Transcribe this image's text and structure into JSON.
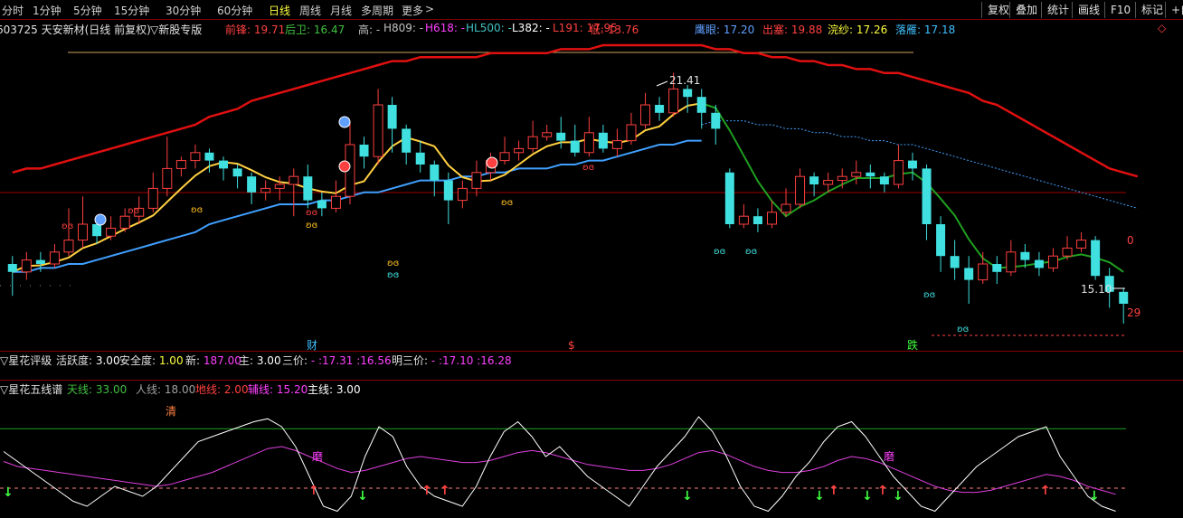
{
  "periods": [
    "分时",
    "1分钟",
    "5分钟",
    "15分钟",
    "30分钟",
    "60分钟",
    "日线",
    "周线",
    "月线",
    "多周期",
    "更多"
  ],
  "active_period": "日线",
  "more_arrow": ">",
  "right_buttons": [
    "复权",
    "叠加",
    "统计",
    "画线",
    "F10",
    "标记",
    "+自"
  ],
  "stock": {
    "header": "603725 天安新材(日线 前复权)",
    "custom_view": "▽新股专版"
  },
  "main_params": [
    {
      "label": "前锋:",
      "value": "19.71",
      "color": "#ff4040"
    },
    {
      "label": "后卫:",
      "value": "16.47",
      "color": "#40c040"
    },
    {
      "label": "高:",
      "value": "-",
      "color": "#c0c0c0"
    },
    {
      "label": "H809:",
      "value": "-",
      "color": "#c0c0c0"
    },
    {
      "label": "H618:",
      "value": "-",
      "color": "#ff40ff"
    },
    {
      "label": "HL500:",
      "value": "-",
      "color": "#40c0c0"
    },
    {
      "label": "L382:",
      "value": "-",
      "color": "#ffffff"
    },
    {
      "label": "L191:",
      "value": "17.95",
      "color": "#ff4040"
    },
    {
      "label": "低:",
      "value": "13.76",
      "color": "#ff4040"
    },
    {
      "label": "鹰眼:",
      "value": "17.20",
      "color": "#60a0ff"
    },
    {
      "label": "出塞:",
      "value": "19.88",
      "color": "#ff4040"
    },
    {
      "label": "浣纱:",
      "value": "17.26",
      "color": "#ffff40"
    },
    {
      "label": "落雁:",
      "value": "17.18",
      "color": "#40c0ff"
    }
  ],
  "right_marker": "◇",
  "annotations": {
    "high": "21.41",
    "low": "15.10",
    "zero": "0",
    "num": "29",
    "cai": "财",
    "s": "$",
    "die": "跌",
    "qing": "清",
    "mo1": "磨",
    "mo2": "磨"
  },
  "rating_panel": {
    "title": "▽星花评级",
    "items": [
      {
        "label": "活跃度:",
        "value": "3.00",
        "color": "#ffffff"
      },
      {
        "label": "安全度:",
        "value": "1.00",
        "color": "#ffff40"
      },
      {
        "label": "新:",
        "value": "187.00",
        "color": "#ff40ff"
      },
      {
        "label": "主:",
        "value": "3.00",
        "color": "#ffffff"
      },
      {
        "label": "三价:",
        "value": "- :17.31 :16.56",
        "color": "#ff40ff"
      },
      {
        "label": "明三价:",
        "value": "- :17.10 :16.28",
        "color": "#ff40ff"
      }
    ]
  },
  "lines_panel": {
    "title": "▽星花五线谱",
    "items": [
      {
        "label": "天线:",
        "value": "33.00",
        "color": "#40c040"
      },
      {
        "label": "人线:",
        "value": "18.00",
        "color": "#a0a0a0"
      },
      {
        "label": "地线:",
        "value": "2.00",
        "color": "#ff4040"
      },
      {
        "label": "辅线:",
        "value": "15.20",
        "color": "#ff40ff"
      },
      {
        "label": "主线:",
        "value": "3.00",
        "color": "#ffffff"
      }
    ]
  },
  "chart_data": {
    "type": "candlestick",
    "candles": [
      [
        16.6,
        16.4,
        16.8,
        15.8
      ],
      [
        16.4,
        16.7,
        16.9,
        16.2
      ],
      [
        16.7,
        16.6,
        16.9,
        16.4
      ],
      [
        16.6,
        16.9,
        17.1,
        16.5
      ],
      [
        16.9,
        17.2,
        18.0,
        16.8
      ],
      [
        17.2,
        17.6,
        18.3,
        17.0
      ],
      [
        17.6,
        17.3,
        17.8,
        17.1
      ],
      [
        17.3,
        17.5,
        17.8,
        17.2
      ],
      [
        17.5,
        17.8,
        18.0,
        17.4
      ],
      [
        17.8,
        18.0,
        18.3,
        17.6
      ],
      [
        18.0,
        18.5,
        18.9,
        17.9
      ],
      [
        18.5,
        19.0,
        19.8,
        18.3
      ],
      [
        19.0,
        19.2,
        19.3,
        18.8
      ],
      [
        19.2,
        19.4,
        19.6,
        19.0
      ],
      [
        19.4,
        19.2,
        19.5,
        18.9
      ],
      [
        19.2,
        19.0,
        19.3,
        18.7
      ],
      [
        19.0,
        18.8,
        19.1,
        18.5
      ],
      [
        18.8,
        18.4,
        18.9,
        18.1
      ],
      [
        18.4,
        18.5,
        18.7,
        18.2
      ],
      [
        18.5,
        18.6,
        18.8,
        18.2
      ],
      [
        18.6,
        18.8,
        19.0,
        17.8
      ],
      [
        18.8,
        18.2,
        19.1,
        18.0
      ],
      [
        18.2,
        18.0,
        18.4,
        17.8
      ],
      [
        18.0,
        18.3,
        18.7,
        17.9
      ],
      [
        18.3,
        19.6,
        20.2,
        18.1
      ],
      [
        19.6,
        19.3,
        19.8,
        19.0
      ],
      [
        19.3,
        20.6,
        21.0,
        19.1
      ],
      [
        20.6,
        20.0,
        20.8,
        19.4
      ],
      [
        20.0,
        19.4,
        20.1,
        19.1
      ],
      [
        19.4,
        19.1,
        19.7,
        18.9
      ],
      [
        19.1,
        18.7,
        19.2,
        18.3
      ],
      [
        18.7,
        18.2,
        18.9,
        17.6
      ],
      [
        18.2,
        18.5,
        18.7,
        18.0
      ],
      [
        18.5,
        18.9,
        19.2,
        18.3
      ],
      [
        18.9,
        19.2,
        19.4,
        18.7
      ],
      [
        19.2,
        19.4,
        19.8,
        19.1
      ],
      [
        19.4,
        19.5,
        19.7,
        19.2
      ],
      [
        19.5,
        19.8,
        20.2,
        19.4
      ],
      [
        19.8,
        19.9,
        20.1,
        19.7
      ],
      [
        19.9,
        19.7,
        20.3,
        19.5
      ],
      [
        19.7,
        19.4,
        20.1,
        19.3
      ],
      [
        19.4,
        19.9,
        20.3,
        19.3
      ],
      [
        19.9,
        19.5,
        20.1,
        19.4
      ],
      [
        19.5,
        19.7,
        20.0,
        19.3
      ],
      [
        19.7,
        20.1,
        20.4,
        19.6
      ],
      [
        20.1,
        20.6,
        20.9,
        20.0
      ],
      [
        20.6,
        20.4,
        20.8,
        20.2
      ],
      [
        20.4,
        21.0,
        21.41,
        20.3
      ],
      [
        21.0,
        20.8,
        21.1,
        20.4
      ],
      [
        20.8,
        20.4,
        21.0,
        20.0
      ],
      [
        20.4,
        20.0,
        20.6,
        19.6
      ],
      [
        18.9,
        17.6,
        19.0,
        17.5
      ],
      [
        17.6,
        17.8,
        18.1,
        17.5
      ],
      [
        17.8,
        17.6,
        18.0,
        17.4
      ],
      [
        17.6,
        17.9,
        18.2,
        17.5
      ],
      [
        17.9,
        18.1,
        18.5,
        17.8
      ],
      [
        18.1,
        18.8,
        19.0,
        18.0
      ],
      [
        18.8,
        18.6,
        18.9,
        18.3
      ],
      [
        18.6,
        18.7,
        18.9,
        18.4
      ],
      [
        18.7,
        18.8,
        19.0,
        18.5
      ],
      [
        18.8,
        18.9,
        19.2,
        18.6
      ],
      [
        18.9,
        18.8,
        19.1,
        18.5
      ],
      [
        18.8,
        18.6,
        18.9,
        18.4
      ],
      [
        18.6,
        19.2,
        19.6,
        18.5
      ],
      [
        19.2,
        19.0,
        19.4,
        18.7
      ],
      [
        19.0,
        17.6,
        19.1,
        17.2
      ],
      [
        17.6,
        16.8,
        17.8,
        16.4
      ],
      [
        16.8,
        16.5,
        17.2,
        16.2
      ],
      [
        16.5,
        16.2,
        16.8,
        15.6
      ],
      [
        16.2,
        16.6,
        16.9,
        16.1
      ],
      [
        16.6,
        16.4,
        16.8,
        16.1
      ],
      [
        16.4,
        16.9,
        17.2,
        16.3
      ],
      [
        16.9,
        16.7,
        17.1,
        16.5
      ],
      [
        16.7,
        16.5,
        16.9,
        16.3
      ],
      [
        16.5,
        16.8,
        17.0,
        16.4
      ],
      [
        16.8,
        17.0,
        17.3,
        16.7
      ],
      [
        17.0,
        17.2,
        17.4,
        16.9
      ],
      [
        17.2,
        16.3,
        17.3,
        16.2
      ],
      [
        16.3,
        15.9,
        16.5,
        15.5
      ],
      [
        15.9,
        15.6,
        16.0,
        15.1
      ]
    ],
    "ylim": [
      14.6,
      22.1
    ],
    "ma_red": [
      18.9,
      19.0,
      19.0,
      19.1,
      19.2,
      19.3,
      19.4,
      19.5,
      19.6,
      19.7,
      19.8,
      19.9,
      20.0,
      20.1,
      20.3,
      20.4,
      20.5,
      20.7,
      20.8,
      20.9,
      21.0,
      21.1,
      21.2,
      21.3,
      21.4,
      21.5,
      21.6,
      21.7,
      21.7,
      21.8,
      21.8,
      21.8,
      21.8,
      21.8,
      21.9,
      21.9,
      21.9,
      21.9,
      21.9,
      22.0,
      22.0,
      22.0,
      22.1,
      22.1,
      22.1,
      22.1,
      22.1,
      22.1,
      22.1,
      22.1,
      22.0,
      22.0,
      21.9,
      21.9,
      21.8,
      21.8,
      21.7,
      21.7,
      21.6,
      21.6,
      21.5,
      21.5,
      21.4,
      21.4,
      21.3,
      21.2,
      21.1,
      21.0,
      20.9,
      20.7,
      20.6,
      20.4,
      20.2,
      20.0,
      19.8,
      19.6,
      19.4,
      19.2,
      19.0,
      18.9,
      18.8
    ],
    "ma_blue": [
      16.4,
      16.4,
      16.5,
      16.5,
      16.6,
      16.6,
      16.7,
      16.8,
      16.9,
      17.0,
      17.1,
      17.2,
      17.3,
      17.4,
      17.6,
      17.7,
      17.8,
      17.9,
      18.0,
      18.1,
      18.1,
      18.1,
      18.2,
      18.2,
      18.3,
      18.4,
      18.4,
      18.5,
      18.6,
      18.7,
      18.7,
      18.7,
      18.8,
      18.8,
      18.9,
      18.9,
      19.0,
      19.0,
      19.0,
      19.1,
      19.1,
      19.2,
      19.2,
      19.3,
      19.4,
      19.5,
      19.6,
      19.6,
      19.7,
      19.7,
      19.8,
      19.8,
      19.8,
      19.7,
      19.7,
      19.6,
      19.6,
      19.5,
      19.5,
      19.4,
      19.4,
      19.3,
      19.3,
      19.2,
      19.2,
      19.1,
      19.0,
      18.9,
      18.8,
      18.7,
      18.6,
      18.5,
      18.4,
      18.3,
      18.2,
      18.1,
      18.0,
      17.9,
      17.8,
      17.7,
      17.6
    ],
    "lower": {
      "white": [
        65,
        55,
        45,
        35,
        25,
        15,
        10,
        20,
        30,
        25,
        20,
        30,
        45,
        60,
        75,
        80,
        85,
        90,
        95,
        98,
        90,
        70,
        40,
        10,
        5,
        20,
        60,
        90,
        80,
        50,
        30,
        20,
        15,
        10,
        30,
        60,
        85,
        95,
        80,
        60,
        70,
        55,
        40,
        30,
        20,
        10,
        30,
        50,
        65,
        80,
        100,
        85,
        60,
        30,
        10,
        5,
        20,
        40,
        55,
        75,
        90,
        95,
        80,
        60,
        40,
        25,
        10,
        5,
        20,
        35,
        50,
        60,
        70,
        80,
        85,
        90,
        60,
        40,
        20,
        10,
        5
      ],
      "pink": [
        55,
        50,
        48,
        46,
        44,
        42,
        40,
        38,
        36,
        34,
        32,
        30,
        32,
        36,
        40,
        44,
        50,
        56,
        62,
        68,
        70,
        66,
        60,
        54,
        48,
        44,
        46,
        50,
        54,
        58,
        60,
        58,
        56,
        54,
        54,
        56,
        60,
        64,
        66,
        64,
        60,
        56,
        52,
        50,
        48,
        46,
        46,
        48,
        52,
        58,
        64,
        66,
        62,
        56,
        50,
        46,
        44,
        44,
        46,
        50,
        56,
        60,
        58,
        54,
        48,
        42,
        36,
        30,
        26,
        24,
        24,
        26,
        30,
        34,
        38,
        42,
        40,
        36,
        30,
        26,
        22
      ],
      "green": 88,
      "dash": 5
    }
  }
}
